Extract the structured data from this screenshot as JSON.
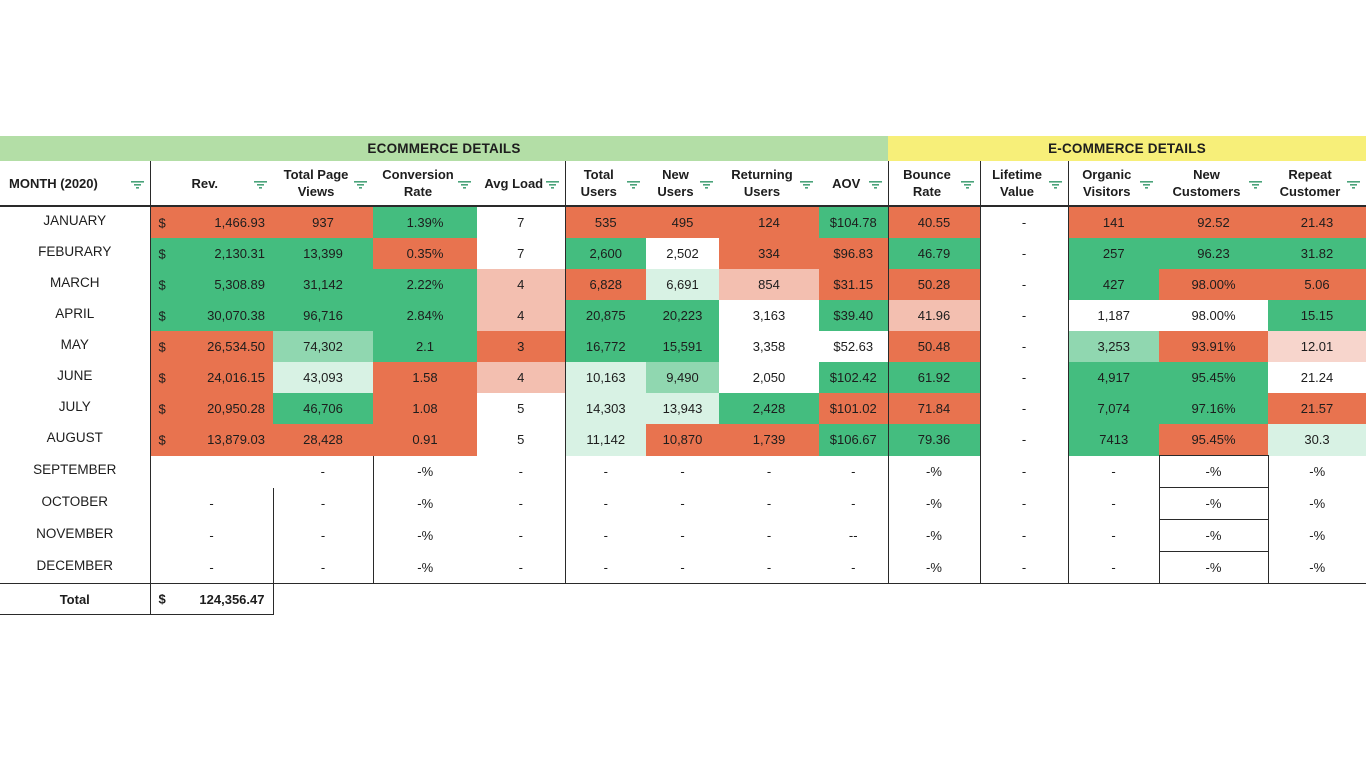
{
  "bands": {
    "left": "ECOMMERCE  DETAILS",
    "right": "E-COMMERCE DETAILS"
  },
  "headers": [
    "MONTH (2020)",
    "Rev.",
    "Total Page Views",
    "Conversion Rate",
    "Avg Load",
    "Total Users",
    "New Users",
    "Returning Users",
    "AOV",
    "Bounce Rate",
    "Lifetime Value",
    "Organic Visitors",
    "New Customers",
    "Repeat Customer"
  ],
  "currency_symbol": "$",
  "rows": [
    {
      "month": "JANUARY",
      "rev": "1,466.93",
      "views": "937",
      "conv": "1.39%",
      "load": "7",
      "users": "535",
      "newu": "495",
      "ret": "124",
      "aov": "$104.78",
      "bounce": "40.55",
      "ltv": "-",
      "org": "141",
      "newc": "92.52",
      "rep": "21.43"
    },
    {
      "month": "FEBURARY",
      "rev": "2,130.31",
      "views": "13,399",
      "conv": "0.35%",
      "load": "7",
      "users": "2,600",
      "newu": "2,502",
      "ret": "334",
      "aov": "$96.83",
      "bounce": "46.79",
      "ltv": "-",
      "org": "257",
      "newc": "96.23",
      "rep": "31.82"
    },
    {
      "month": "MARCH",
      "rev": "5,308.89",
      "views": "31,142",
      "conv": "2.22%",
      "load": "4",
      "users": "6,828",
      "newu": "6,691",
      "ret": "854",
      "aov": "$31.15",
      "bounce": "50.28",
      "ltv": "-",
      "org": "427",
      "newc": "98.00%",
      "rep": "5.06"
    },
    {
      "month": "APRIL",
      "rev": "30,070.38",
      "views": "96,716",
      "conv": "2.84%",
      "load": "4",
      "users": "20,875",
      "newu": "20,223",
      "ret": "3,163",
      "aov": "$39.40",
      "bounce": "41.96",
      "ltv": "-",
      "org": "1,187",
      "newc": "98.00%",
      "rep": "15.15"
    },
    {
      "month": "MAY",
      "rev": "26,534.50",
      "views": "74,302",
      "conv": "2.1",
      "load": "3",
      "users": "16,772",
      "newu": "15,591",
      "ret": "3,358",
      "aov": "$52.63",
      "bounce": "50.48",
      "ltv": "-",
      "org": "3,253",
      "newc": "93.91%",
      "rep": "12.01"
    },
    {
      "month": "JUNE",
      "rev": "24,016.15",
      "views": "43,093",
      "conv": "1.58",
      "load": "4",
      "users": "10,163",
      "newu": "9,490",
      "ret": "2,050",
      "aov": "$102.42",
      "bounce": "61.92",
      "ltv": "-",
      "org": "4,917",
      "newc": "95.45%",
      "rep": "21.24"
    },
    {
      "month": "JULY",
      "rev": "20,950.28",
      "views": "46,706",
      "conv": "1.08",
      "load": "5",
      "users": "14,303",
      "newu": "13,943",
      "ret": "2,428",
      "aov": "$101.02",
      "bounce": "71.84",
      "ltv": "-",
      "org": "7,074",
      "newc": "97.16%",
      "rep": "21.57"
    },
    {
      "month": "AUGUST",
      "rev": "13,879.03",
      "views": "28,428",
      "conv": "0.91",
      "load": "5",
      "users": "11,142",
      "newu": "10,870",
      "ret": "1,739",
      "aov": "$106.67",
      "bounce": "79.36",
      "ltv": "-",
      "org": "7413",
      "newc": "95.45%",
      "rep": "30.3"
    },
    {
      "month": "SEPTEMBER",
      "rev": "",
      "views": "-",
      "conv": "-%",
      "load": "-",
      "users": "-",
      "newu": "-",
      "ret": "-",
      "aov": "-",
      "bounce": "-%",
      "ltv": "-",
      "org": "-",
      "newc": "-%",
      "rep": "-%"
    },
    {
      "month": "OCTOBER",
      "rev": "-",
      "views": "-",
      "conv": "-%",
      "load": "-",
      "users": "-",
      "newu": "-",
      "ret": "-",
      "aov": "-",
      "bounce": "-%",
      "ltv": "-",
      "org": "-",
      "newc": "-%",
      "rep": "-%"
    },
    {
      "month": "NOVEMBER",
      "rev": "-",
      "views": "-",
      "conv": "-%",
      "load": "-",
      "users": "-",
      "newu": "-",
      "ret": "-",
      "aov": "--",
      "bounce": "-%",
      "ltv": "-",
      "org": "-",
      "newc": "-%",
      "rep": "-%"
    },
    {
      "month": "DECEMBER",
      "rev": "-",
      "views": "-",
      "conv": "-%",
      "load": "-",
      "users": "-",
      "newu": "-",
      "ret": "-",
      "aov": "-",
      "bounce": "-%",
      "ltv": "-",
      "org": "-",
      "newc": "-%",
      "rep": "-%"
    }
  ],
  "total": {
    "label": "Total",
    "currency": "$",
    "value": "124,356.47"
  },
  "colors": {
    "red": "#e8734f",
    "green": "#44bd7f",
    "light_green": "#90d7b0",
    "pale_green": "#d8f2e4",
    "pink": "#f3bfb0",
    "light_pink": "#f7d5cc",
    "band_green": "#b3dea6",
    "band_yellow": "#f7ef79",
    "filter_icon": "#4aa37a"
  },
  "heat": [
    {
      "rev": "red",
      "views": "red",
      "conv": "green",
      "load": "white",
      "users": "red",
      "newu": "red",
      "ret": "red",
      "aov": "green",
      "bounce": "red",
      "org": "red",
      "newc": "red",
      "rep": "red"
    },
    {
      "rev": "green",
      "views": "green",
      "conv": "red",
      "load": "white",
      "users": "green",
      "newu": "white",
      "ret": "red",
      "aov": "red",
      "bounce": "green",
      "org": "green",
      "newc": "green",
      "rep": "green"
    },
    {
      "rev": "green",
      "views": "green",
      "conv": "green",
      "load": "pink",
      "users": "red",
      "newu": "llgreen",
      "ret": "pink",
      "aov": "red",
      "bounce": "red",
      "org": "green",
      "newc": "red",
      "rep": "red"
    },
    {
      "rev": "green",
      "views": "green",
      "conv": "green",
      "load": "pink",
      "users": "green",
      "newu": "green",
      "ret": "white",
      "aov": "green",
      "bounce": "pink",
      "org": "white",
      "newc": "white",
      "rep": "green"
    },
    {
      "rev": "red",
      "views": "lgreen",
      "conv": "green",
      "load": "red",
      "users": "green",
      "newu": "green",
      "ret": "white",
      "aov": "white",
      "bounce": "red",
      "org": "lgreen",
      "newc": "red",
      "rep": "lpink"
    },
    {
      "rev": "red",
      "views": "llgreen",
      "conv": "red",
      "load": "pink",
      "users": "llgreen",
      "newu": "lgreen",
      "ret": "white",
      "aov": "green",
      "bounce": "green",
      "org": "green",
      "newc": "green",
      "rep": "white"
    },
    {
      "rev": "red",
      "views": "green",
      "conv": "red",
      "load": "white",
      "users": "llgreen",
      "newu": "llgreen",
      "ret": "green",
      "aov": "red",
      "bounce": "red",
      "org": "green",
      "newc": "green",
      "rep": "red"
    },
    {
      "rev": "red",
      "views": "red",
      "conv": "red",
      "load": "white",
      "users": "llgreen",
      "newu": "red",
      "ret": "red",
      "aov": "green",
      "bounce": "green",
      "org": "green",
      "newc": "red",
      "rep": "llgreen"
    }
  ]
}
